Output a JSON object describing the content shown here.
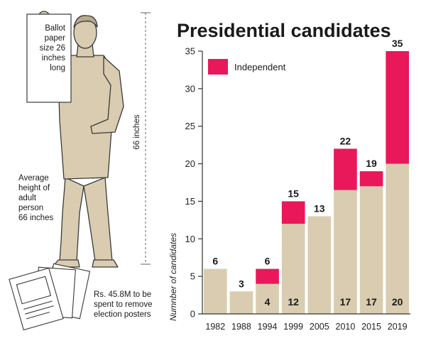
{
  "chart_data": {
    "type": "bar",
    "title": "Presidential candidates",
    "ylabel": "Numnber of candidates",
    "xlabel": "",
    "ylim": [
      0,
      35
    ],
    "yticks": [
      0,
      5,
      10,
      15,
      20,
      25,
      30,
      35
    ],
    "categories": [
      "1982",
      "1988",
      "1994",
      "1999",
      "2005",
      "2010",
      "2015",
      "2019"
    ],
    "series": [
      {
        "name": "",
        "color": "#d9ccb0",
        "values": [
          6,
          3,
          4,
          12,
          13,
          16.5,
          17,
          20
        ]
      },
      {
        "name": "Independent",
        "color": "#e8185a",
        "values": [
          0,
          0,
          2,
          3,
          0,
          5.5,
          2,
          15
        ]
      }
    ],
    "total_labels": [
      "6",
      "3",
      "6",
      "15",
      "13",
      "22",
      "19",
      "35"
    ],
    "base_labels": [
      "",
      "",
      "4",
      "12",
      "",
      "17",
      "17",
      "20"
    ],
    "grid": false,
    "legend_position": "top-left"
  },
  "annotations": {
    "ballot_note": [
      "Ballot",
      "paper",
      "size 26",
      "inches",
      "long"
    ],
    "height_note": [
      "Average",
      "height of",
      "adult",
      "person",
      "66 inches"
    ],
    "height_scale_label": "66 inches",
    "posters_note": [
      "Rs. 45.8M to be",
      "spent to remove",
      "election posters"
    ]
  },
  "colors": {
    "base_bar": "#d9ccb0",
    "independent": "#e8185a",
    "figure": "#d9ccb0",
    "outline": "#3a3a3a"
  }
}
